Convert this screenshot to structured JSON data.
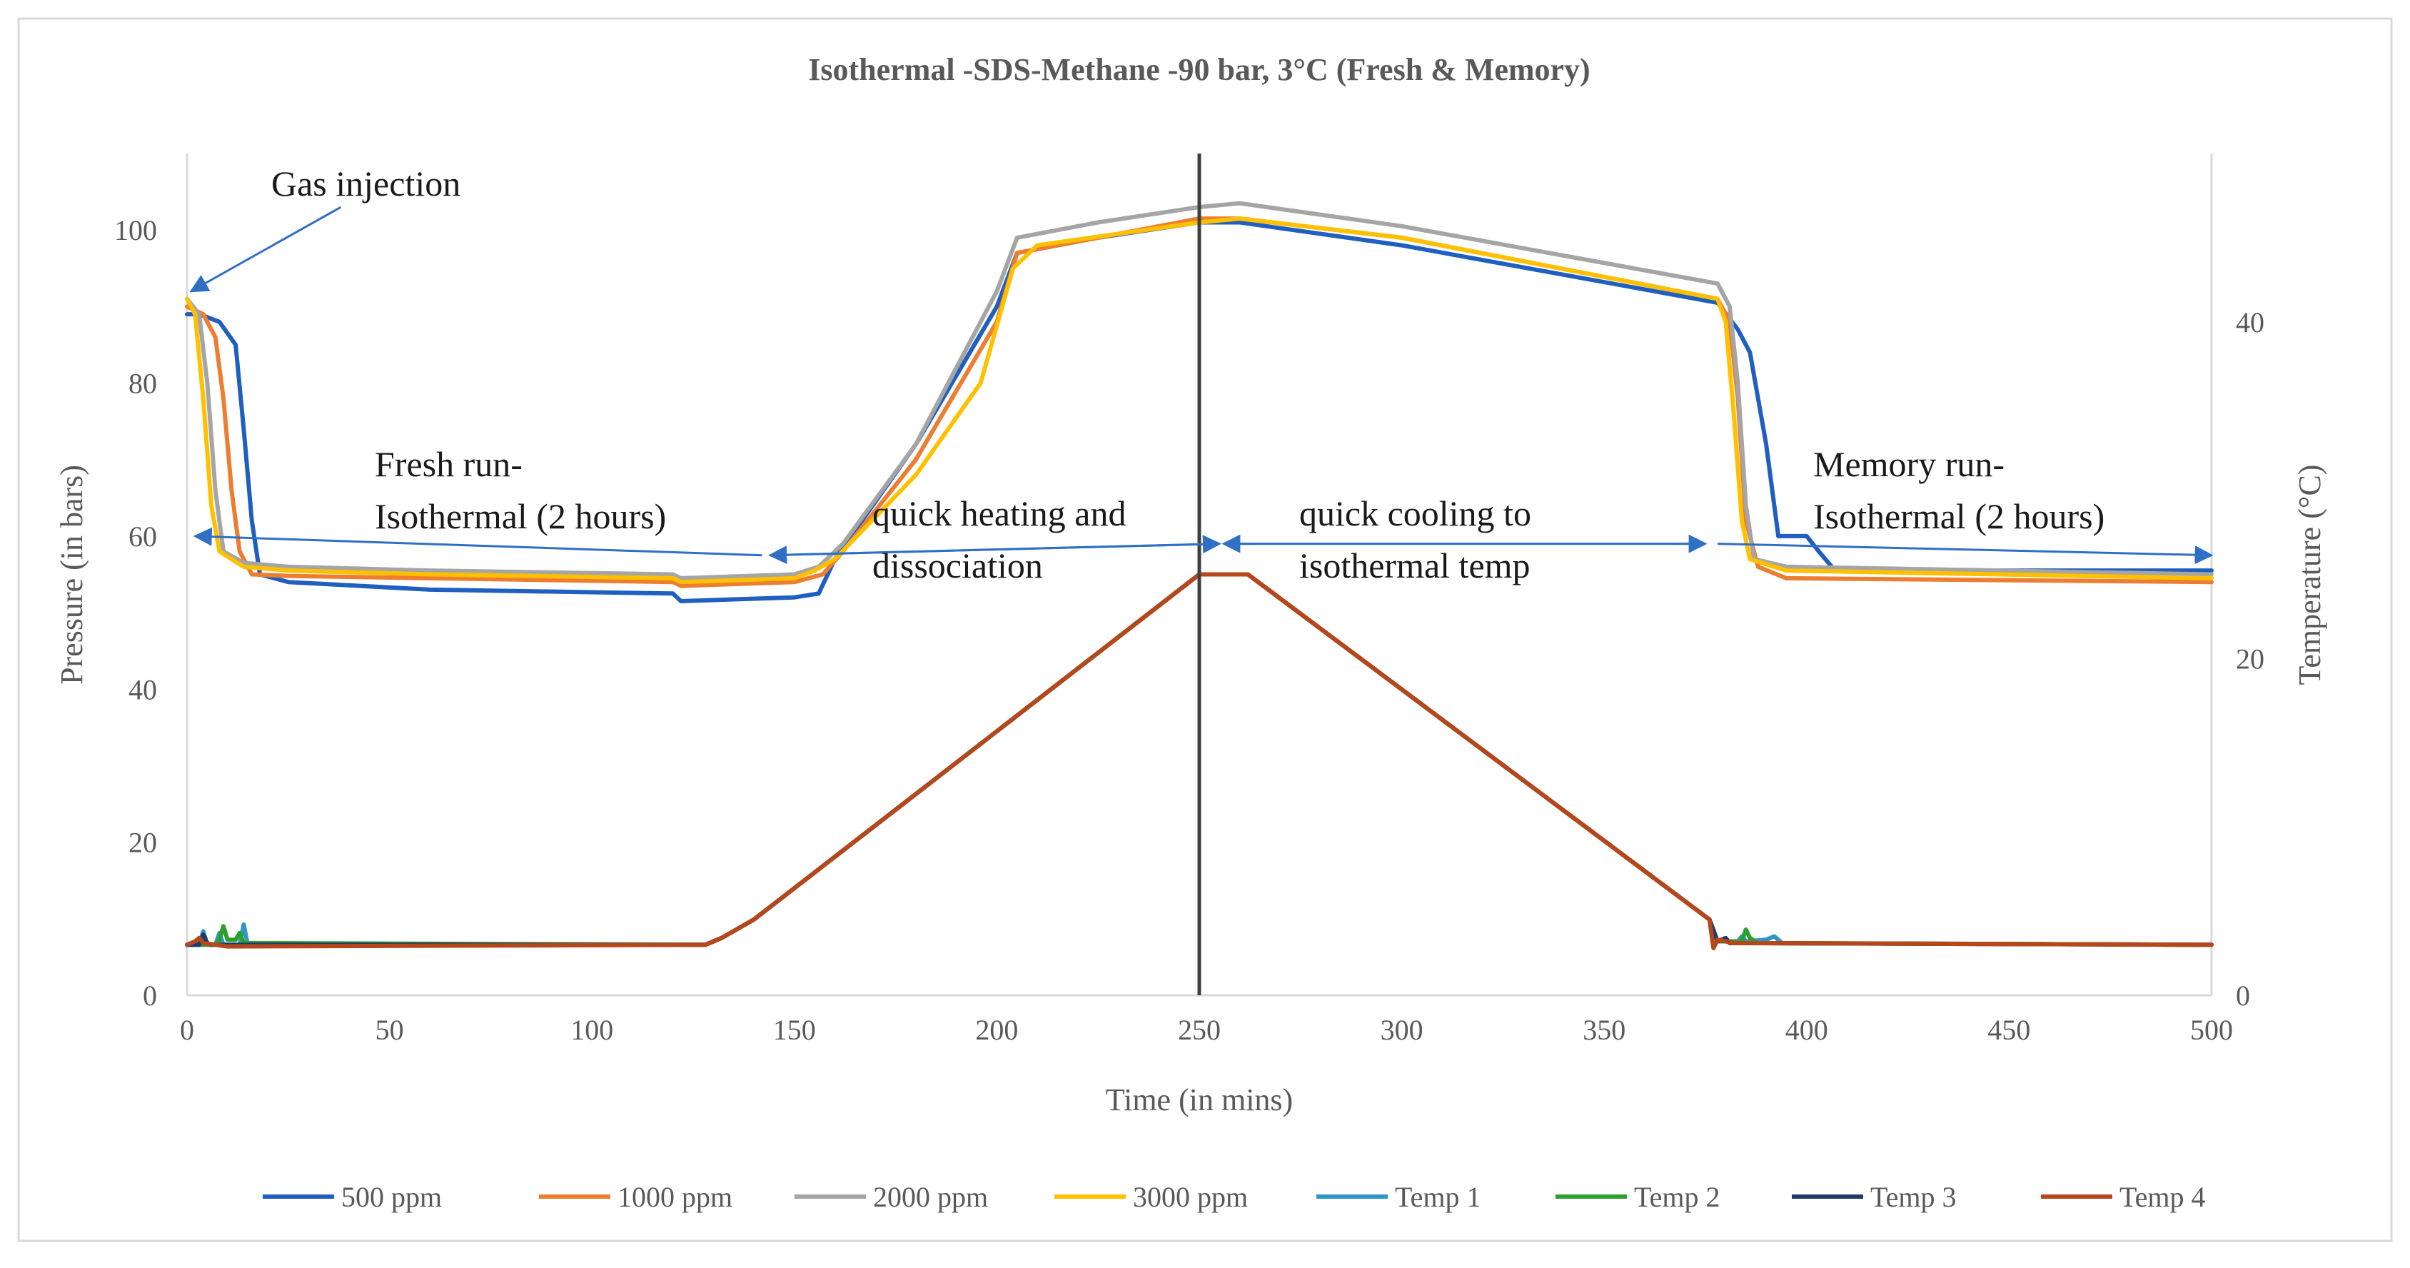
{
  "chart_data": {
    "type": "line",
    "title": "Isothermal -SDS-Methane -90 bar, 3°C (Fresh & Memory)",
    "xlabel": "Time (in mins)",
    "ylabel": "Pressure (in bars)",
    "y2label": "Temperature (°C)",
    "xlim": [
      0,
      500
    ],
    "ylim": [
      0,
      110
    ],
    "y2lim": [
      0,
      50
    ],
    "xticks": [
      0,
      50,
      100,
      150,
      200,
      250,
      300,
      350,
      400,
      450,
      500
    ],
    "yticks": [
      0,
      20,
      40,
      60,
      80,
      100
    ],
    "y2ticks": [
      0,
      20,
      40
    ],
    "grid": false,
    "legend_position": "bottom",
    "series": [
      {
        "name": "500 ppm",
        "axis": "left",
        "color": "#1f5fbf",
        "points": [
          [
            0,
            89
          ],
          [
            3,
            89
          ],
          [
            8,
            88
          ],
          [
            12,
            85
          ],
          [
            14,
            74
          ],
          [
            16,
            62
          ],
          [
            18,
            55
          ],
          [
            25,
            54
          ],
          [
            60,
            53
          ],
          [
            120,
            52.5
          ],
          [
            122,
            51.5
          ],
          [
            150,
            52
          ],
          [
            156,
            52.5
          ],
          [
            160,
            57
          ],
          [
            180,
            72
          ],
          [
            200,
            90
          ],
          [
            205,
            97
          ],
          [
            225,
            99
          ],
          [
            250,
            101
          ],
          [
            260,
            101
          ],
          [
            300,
            98
          ],
          [
            378,
            90.5
          ],
          [
            383,
            87
          ],
          [
            386,
            84
          ],
          [
            390,
            72
          ],
          [
            393,
            60
          ],
          [
            400,
            60
          ],
          [
            403,
            58
          ],
          [
            407,
            55.5
          ],
          [
            500,
            55.5
          ]
        ]
      },
      {
        "name": "1000 ppm",
        "axis": "left",
        "color": "#ed7d31",
        "points": [
          [
            0,
            90
          ],
          [
            4,
            89
          ],
          [
            7,
            86
          ],
          [
            9,
            78
          ],
          [
            11,
            66
          ],
          [
            13,
            58
          ],
          [
            16,
            55
          ],
          [
            25,
            54.8
          ],
          [
            60,
            54.5
          ],
          [
            120,
            54
          ],
          [
            122,
            53.5
          ],
          [
            150,
            54
          ],
          [
            157,
            55
          ],
          [
            162,
            58
          ],
          [
            180,
            70
          ],
          [
            200,
            88
          ],
          [
            205,
            97
          ],
          [
            250,
            101.5
          ],
          [
            260,
            101.5
          ],
          [
            300,
            99
          ],
          [
            378,
            91
          ],
          [
            381,
            88
          ],
          [
            383,
            78
          ],
          [
            385,
            62
          ],
          [
            388,
            56
          ],
          [
            395,
            54.5
          ],
          [
            500,
            54
          ]
        ]
      },
      {
        "name": "2000 ppm",
        "axis": "left",
        "color": "#a5a5a5",
        "points": [
          [
            0,
            91
          ],
          [
            3,
            89
          ],
          [
            5,
            80
          ],
          [
            7,
            66
          ],
          [
            9,
            58
          ],
          [
            14,
            56.5
          ],
          [
            25,
            56
          ],
          [
            60,
            55.5
          ],
          [
            120,
            55
          ],
          [
            122,
            54.5
          ],
          [
            150,
            55
          ],
          [
            156,
            56
          ],
          [
            162,
            59
          ],
          [
            180,
            72
          ],
          [
            200,
            92
          ],
          [
            205,
            99
          ],
          [
            225,
            101
          ],
          [
            250,
            103
          ],
          [
            260,
            103.5
          ],
          [
            300,
            100.5
          ],
          [
            378,
            93
          ],
          [
            381,
            90
          ],
          [
            383,
            80
          ],
          [
            385,
            64
          ],
          [
            387,
            57
          ],
          [
            395,
            56
          ],
          [
            500,
            55
          ]
        ]
      },
      {
        "name": "3000 ppm",
        "axis": "left",
        "color": "#ffc000",
        "points": [
          [
            0,
            91
          ],
          [
            2,
            89
          ],
          [
            4,
            78
          ],
          [
            6,
            64
          ],
          [
            8,
            58
          ],
          [
            14,
            56
          ],
          [
            25,
            55.5
          ],
          [
            60,
            55
          ],
          [
            120,
            54.5
          ],
          [
            122,
            54
          ],
          [
            150,
            54.5
          ],
          [
            155,
            55.5
          ],
          [
            160,
            57
          ],
          [
            180,
            68
          ],
          [
            196,
            80
          ],
          [
            204,
            95
          ],
          [
            210,
            98
          ],
          [
            250,
            101
          ],
          [
            260,
            101.5
          ],
          [
            300,
            99
          ],
          [
            378,
            91
          ],
          [
            380,
            88
          ],
          [
            382,
            76
          ],
          [
            384,
            62
          ],
          [
            386,
            57
          ],
          [
            395,
            55.5
          ],
          [
            500,
            54.5
          ]
        ]
      },
      {
        "name": "Temp 1",
        "axis": "right",
        "color": "#2f97c8",
        "points": [
          [
            0,
            3
          ],
          [
            3,
            3
          ],
          [
            4,
            3.8
          ],
          [
            5,
            3
          ],
          [
            7,
            3
          ],
          [
            8,
            3.7
          ],
          [
            9,
            3
          ],
          [
            13,
            3
          ],
          [
            14,
            4.2
          ],
          [
            15,
            3
          ],
          [
            128,
            3
          ],
          [
            132,
            3.4
          ],
          [
            140,
            4.5
          ],
          [
            250,
            25
          ],
          [
            262,
            25
          ],
          [
            376,
            4.5
          ],
          [
            378,
            3.2
          ],
          [
            383,
            3.2
          ],
          [
            384,
            3.5
          ],
          [
            385,
            3.2
          ],
          [
            390,
            3.3
          ],
          [
            392,
            3.5
          ],
          [
            394,
            3.1
          ],
          [
            500,
            3
          ]
        ]
      },
      {
        "name": "Temp 2",
        "axis": "right",
        "color": "#2ca02c",
        "points": [
          [
            0,
            3
          ],
          [
            7,
            3
          ],
          [
            8,
            3.3
          ],
          [
            9,
            4.1
          ],
          [
            10,
            3.3
          ],
          [
            12,
            3.3
          ],
          [
            13,
            3.7
          ],
          [
            14,
            3.1
          ],
          [
            128,
            3
          ],
          [
            132,
            3.4
          ],
          [
            140,
            4.5
          ],
          [
            250,
            25
          ],
          [
            262,
            25
          ],
          [
            376,
            4.5
          ],
          [
            378,
            3.2
          ],
          [
            384,
            3.2
          ],
          [
            385,
            3.9
          ],
          [
            386,
            3.4
          ],
          [
            388,
            3.1
          ],
          [
            500,
            3
          ]
        ]
      },
      {
        "name": "Temp 3",
        "axis": "right",
        "color": "#1f3a6a",
        "points": [
          [
            0,
            3
          ],
          [
            3,
            3
          ],
          [
            4,
            3.6
          ],
          [
            5,
            3.1
          ],
          [
            6,
            3
          ],
          [
            128,
            3
          ],
          [
            132,
            3.4
          ],
          [
            140,
            4.5
          ],
          [
            250,
            25
          ],
          [
            262,
            25
          ],
          [
            376,
            4.5
          ],
          [
            378,
            3.2
          ],
          [
            380,
            3.4
          ],
          [
            381,
            3.1
          ],
          [
            500,
            3
          ]
        ]
      },
      {
        "name": "Temp 4",
        "axis": "right",
        "color": "#b5471b",
        "points": [
          [
            0,
            3
          ],
          [
            2,
            3.2
          ],
          [
            3,
            3.4
          ],
          [
            4,
            3.1
          ],
          [
            10,
            2.9
          ],
          [
            128,
            3
          ],
          [
            132,
            3.4
          ],
          [
            140,
            4.5
          ],
          [
            250,
            25
          ],
          [
            262,
            25
          ],
          [
            376,
            4.5
          ],
          [
            377,
            2.8
          ],
          [
            378,
            3.3
          ],
          [
            382,
            3.1
          ],
          [
            500,
            3
          ]
        ]
      }
    ],
    "vertical_marker_x": 250,
    "annotations": [
      {
        "lines": [
          "Gas injection"
        ]
      },
      {
        "lines": [
          "Fresh run-",
          "Isothermal (2 hours)"
        ]
      },
      {
        "lines": [
          "quick heating and",
          "dissociation"
        ]
      },
      {
        "lines": [
          "quick cooling to",
          "isothermal temp"
        ]
      },
      {
        "lines": [
          "Memory run-",
          "Isothermal (2 hours)"
        ]
      }
    ],
    "annotation_arrows": [
      {
        "from": [
          38,
          103
        ],
        "to": [
          1,
          92
        ]
      },
      {
        "from": [
          142,
          57.5
        ],
        "to": [
          2,
          60
        ]
      },
      {
        "from": [
          144,
          57.5
        ],
        "to": [
          255,
          59
        ]
      },
      {
        "from": [
          255,
          59
        ],
        "to": [
          144,
          57.5
        ]
      },
      {
        "from": [
          256,
          59
        ],
        "to": [
          375,
          59
        ]
      },
      {
        "from": [
          375,
          59
        ],
        "to": [
          256,
          59
        ]
      },
      {
        "from": [
          378,
          59
        ],
        "to": [
          500,
          57.5
        ]
      }
    ]
  }
}
